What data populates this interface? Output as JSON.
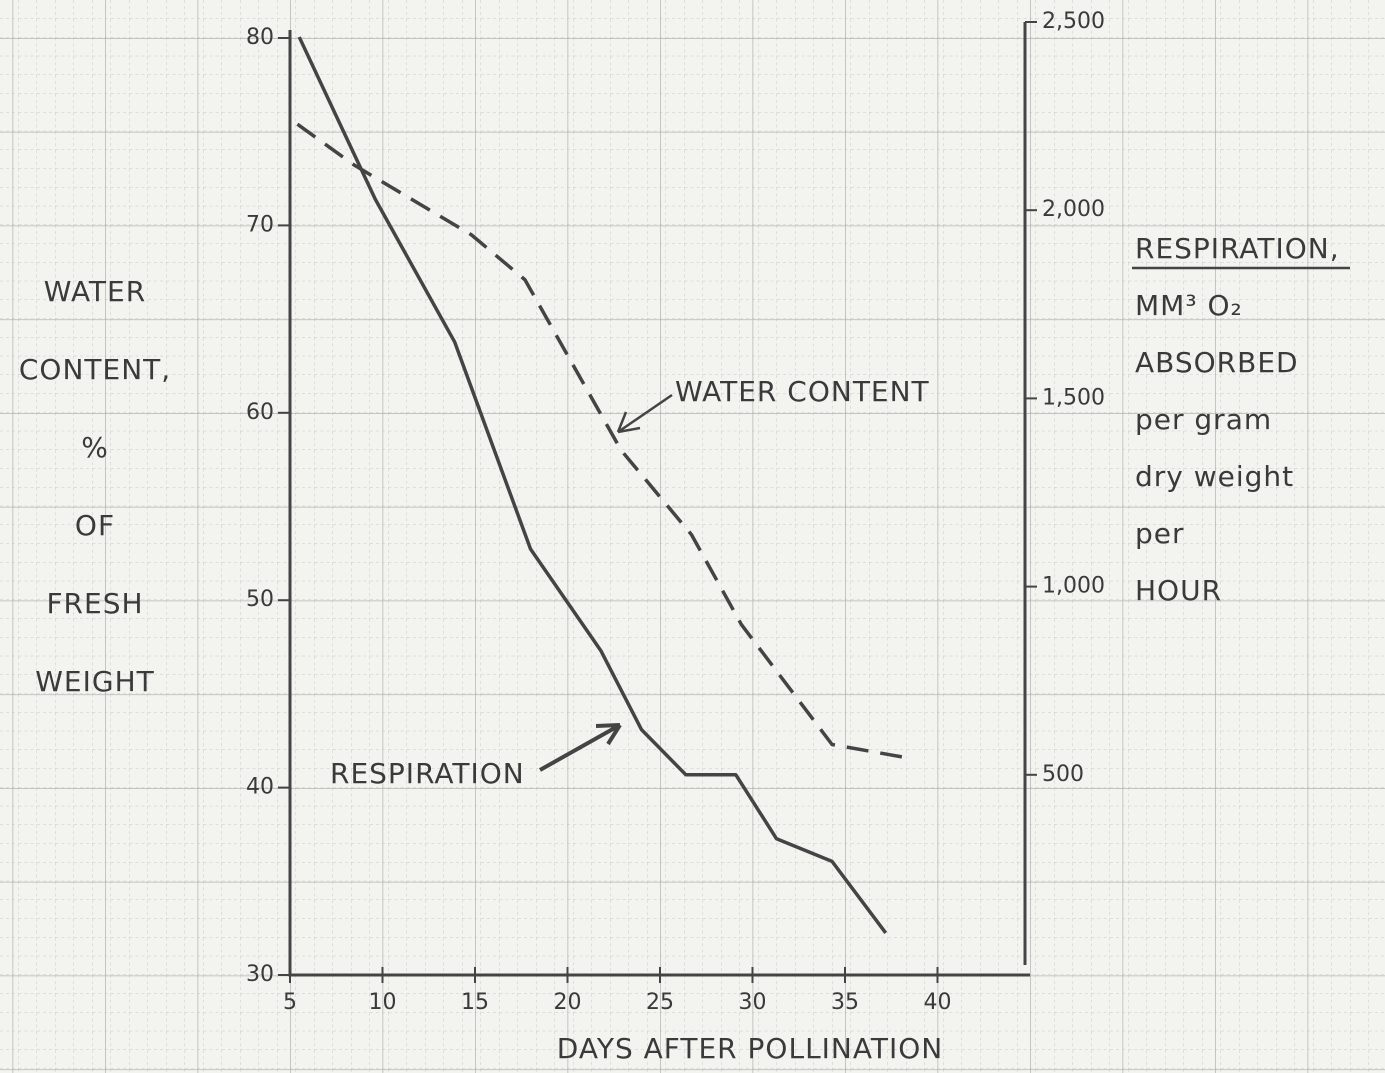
{
  "chart_data": {
    "type": "line",
    "x_label": "DAYS AFTER POLLINATION",
    "y_label_lines": [
      "WATER",
      "CONTENT,",
      "%",
      "OF",
      "FRESH",
      "WEIGHT"
    ],
    "y2_label_lines": [
      "RESPIRATION,",
      "MM³ O₂",
      "ABSORBED",
      "per gram",
      "dry weight",
      "per",
      "HOUR"
    ],
    "xlim": [
      5,
      45
    ],
    "xticks": [
      5,
      10,
      15,
      20,
      25,
      30,
      35,
      40
    ],
    "ylim": [
      30,
      80
    ],
    "yticks": [
      30,
      40,
      50,
      60,
      70,
      80
    ],
    "y2lim": [
      0,
      2500
    ],
    "y2ticks": [
      {
        "value": 500,
        "label": "500"
      },
      {
        "value": 1000,
        "label": "1,000"
      },
      {
        "value": 1500,
        "label": "1,500"
      },
      {
        "value": 2000,
        "label": "2,000"
      },
      {
        "value": 2500,
        "label": "2,500"
      }
    ],
    "series": [
      {
        "name": "WATER CONTENT",
        "color": "#444444",
        "dash": true,
        "x": [
          5.4,
          8.5,
          14.8,
          17.7,
          22.9,
          26.7,
          29.4,
          34.3,
          38.3
        ],
        "values": [
          75.4,
          73.2,
          69.5,
          67.1,
          58.0,
          53.5,
          48.7,
          42.3,
          41.6
        ]
      },
      {
        "name": "RESPIRATION",
        "color": "#444444",
        "dash": false,
        "axis": "y2",
        "x": [
          5.5,
          9.6,
          13.9,
          18.0,
          21.8,
          24.0,
          26.4,
          29.1,
          31.3,
          34.3,
          37.2
        ],
        "values": [
          2460,
          2030,
          1650,
          1100,
          830,
          620,
          500,
          500,
          330,
          270,
          80
        ]
      }
    ]
  }
}
